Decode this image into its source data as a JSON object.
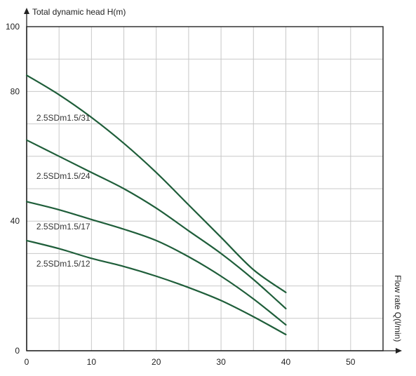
{
  "chart_data": {
    "type": "line",
    "ylabel": "Total dynamic head H(m)",
    "xlabel": "Flow rate Q(l/min)",
    "xlim": [
      0,
      55
    ],
    "ylim": [
      0,
      100
    ],
    "x_ticks": [
      "0",
      "10",
      "20",
      "30",
      "40",
      "50"
    ],
    "y_ticks": [
      {
        "value": 0,
        "label": "0"
      },
      {
        "value": 40,
        "label": "40"
      },
      {
        "value": 80,
        "label": "80"
      },
      {
        "value": 100,
        "label": "100"
      }
    ],
    "grid": true,
    "series": [
      {
        "name": "2.5SDm1.5/31",
        "label_at": [
          1.5,
          71
        ],
        "x": [
          0,
          5,
          10,
          15,
          20,
          25,
          30,
          35,
          40
        ],
        "y": [
          85,
          79,
          72,
          64,
          55,
          45,
          35,
          25,
          18
        ]
      },
      {
        "name": "2.5SDm1.5/24",
        "label_at": [
          1.5,
          53
        ],
        "x": [
          0,
          5,
          10,
          15,
          20,
          25,
          30,
          35,
          40
        ],
        "y": [
          65,
          60,
          55,
          50,
          44,
          37,
          30,
          22,
          13
        ]
      },
      {
        "name": "2.5SDm1.5/17",
        "label_at": [
          1.5,
          37.5
        ],
        "x": [
          0,
          5,
          10,
          15,
          20,
          25,
          30,
          35,
          40
        ],
        "y": [
          46,
          43.5,
          40.5,
          37.5,
          34,
          29,
          23,
          16,
          8
        ]
      },
      {
        "name": "2.5SDm1.5/12",
        "label_at": [
          1.5,
          26
        ],
        "x": [
          0,
          5,
          10,
          15,
          20,
          25,
          30,
          35,
          40
        ],
        "y": [
          34,
          31.5,
          28.5,
          26,
          23,
          19.5,
          15.5,
          10.5,
          5
        ]
      }
    ],
    "colors": {
      "curve": "#1f5e3a",
      "grid": "#c8c8c8",
      "frame": "#333333"
    }
  }
}
